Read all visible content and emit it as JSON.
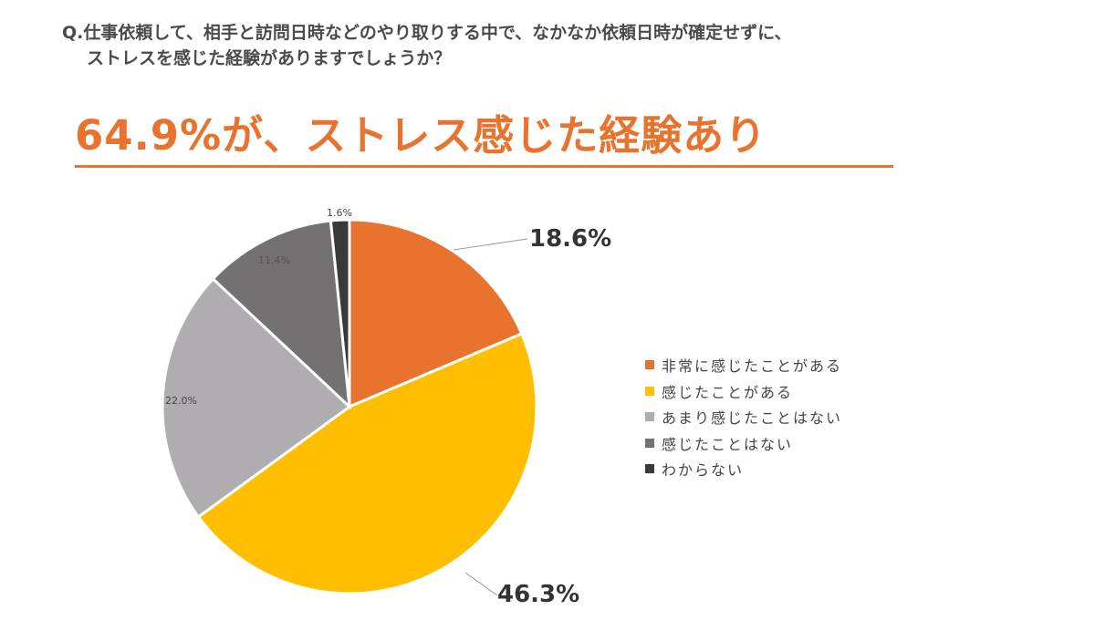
{
  "question": {
    "line1": "Q.仕事依頼して、相手と訪問日時などのやり取りする中で、なかなか依頼日時が確定せずに、",
    "line2": "ストレスを感じた経験がありますでしょうか？"
  },
  "headline": "64.9%が、ストレス感じた経験あり",
  "chart_data": {
    "type": "pie",
    "title": "",
    "categories": [
      "非常に感じたことがある",
      "感じたことがある",
      "あまり感じたことはない",
      "感じたことはない",
      "わからない"
    ],
    "values": [
      18.6,
      46.3,
      22.0,
      11.4,
      1.6
    ],
    "labels": [
      "18.6%",
      "46.3%",
      "22.0%",
      "11.4%",
      "1.6%"
    ],
    "colors": [
      "#E8732F",
      "#FFBE00",
      "#AFADAF",
      "#747173",
      "#3C383B"
    ],
    "legend": "right",
    "start": "12 o'clock, clockwise"
  }
}
